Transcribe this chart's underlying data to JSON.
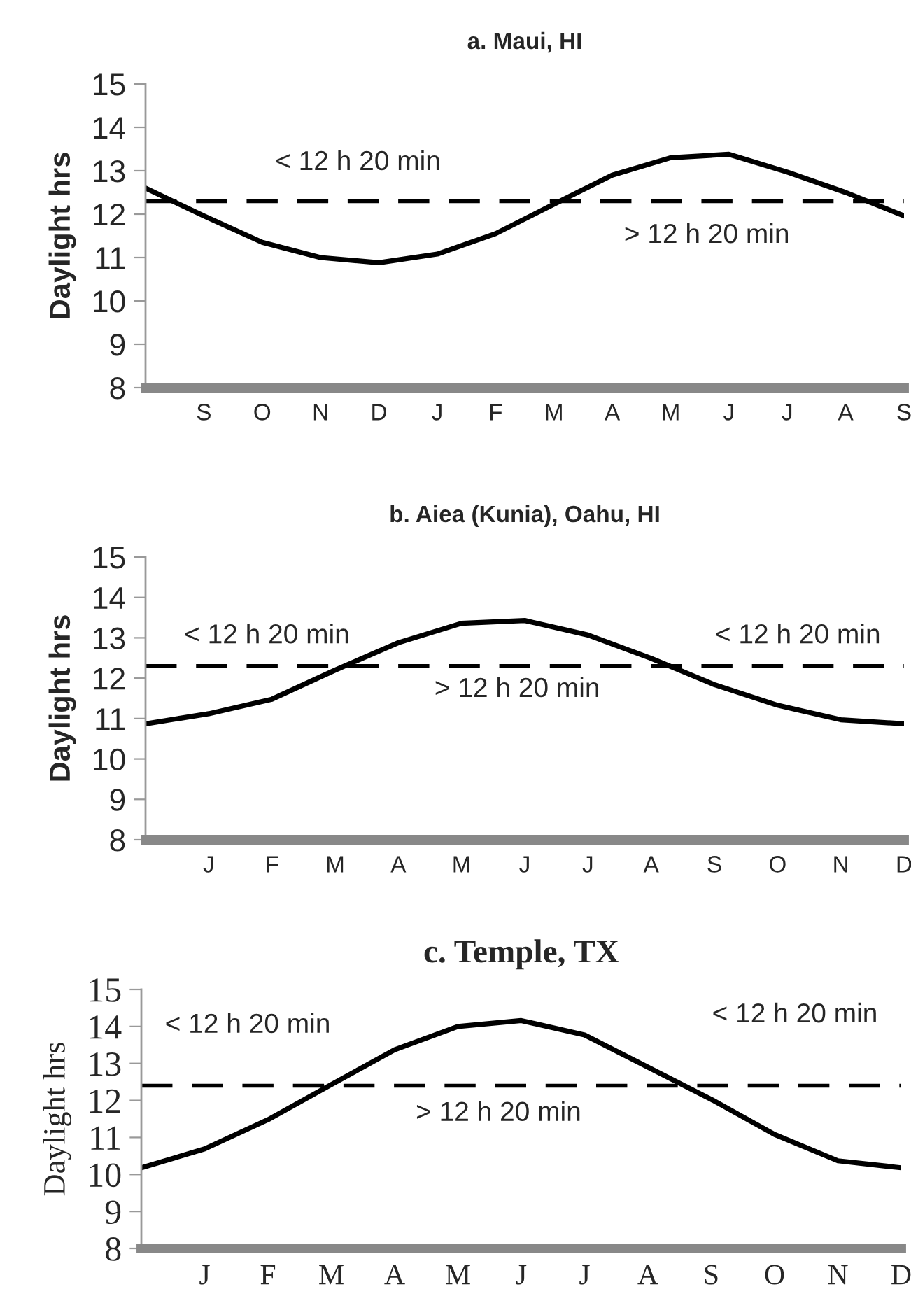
{
  "chart_data": [
    {
      "type": "line",
      "title": "a. Maui, HI",
      "ylabel": "Daylight hrs",
      "categories": [
        null,
        "S",
        "O",
        "N",
        "D",
        "J",
        "F",
        "M",
        "A",
        "M",
        "J",
        "J",
        "A",
        "S"
      ],
      "series": [
        {
          "color": "#000000",
          "values": [
            12.6,
            11.96,
            11.35,
            11.0,
            10.88,
            11.08,
            11.55,
            12.23,
            12.9,
            13.3,
            13.38,
            12.97,
            12.5,
            11.96
          ]
        }
      ],
      "ylim": [
        8,
        15
      ],
      "yticks": [
        8,
        9,
        10,
        11,
        12,
        13,
        14,
        15
      ],
      "ref_lines": [
        {
          "axis": "y",
          "value": 12.3,
          "line_style": "dashed",
          "color": "#000000"
        }
      ],
      "annotations": [
        "< 12 h 20 min",
        "> 12 h 20 min"
      ],
      "grid": false,
      "marker": "none",
      "line_style": "solid"
    },
    {
      "type": "line",
      "title": "b. Aiea (Kunia), Oahu, HI",
      "ylabel": "Daylight hrs",
      "categories": [
        null,
        "J",
        "F",
        "M",
        "A",
        "M",
        "J",
        "J",
        "A",
        "S",
        "O",
        "N",
        "D"
      ],
      "series": [
        {
          "color": "#000000",
          "values": [
            10.87,
            11.12,
            11.48,
            12.2,
            12.88,
            13.36,
            13.43,
            13.07,
            12.49,
            11.84,
            11.33,
            10.97,
            10.87
          ]
        }
      ],
      "ylim": [
        8,
        15
      ],
      "yticks": [
        8,
        9,
        10,
        11,
        12,
        13,
        14,
        15
      ],
      "ref_lines": [
        {
          "axis": "y",
          "value": 12.3,
          "line_style": "dashed",
          "color": "#000000"
        }
      ],
      "annotations": [
        "< 12 h 20 min",
        "> 12 h 20 min",
        "< 12 h 20 min"
      ],
      "grid": false,
      "marker": "none",
      "line_style": "solid"
    },
    {
      "type": "line",
      "title": "c. Temple, TX",
      "ylabel": "Daylight hrs",
      "categories": [
        null,
        "J",
        "F",
        "M",
        "A",
        "M",
        "J",
        "J",
        "A",
        "S",
        "O",
        "N",
        "D"
      ],
      "series": [
        {
          "color": "#000000",
          "values": [
            10.18,
            10.69,
            11.48,
            12.43,
            13.37,
            14.0,
            14.16,
            13.77,
            12.9,
            12.03,
            11.08,
            10.37,
            10.18
          ]
        }
      ],
      "ylim": [
        8,
        15
      ],
      "yticks": [
        8,
        9,
        10,
        11,
        12,
        13,
        14,
        15
      ],
      "ref_lines": [
        {
          "axis": "y",
          "value": 12.4,
          "line_style": "dashed",
          "color": "#000000"
        }
      ],
      "annotations": [
        "< 12 h 20 min",
        "> 12 h 20 min",
        "< 12 h 20 min"
      ],
      "grid": false,
      "marker": "none",
      "line_style": "solid"
    }
  ]
}
